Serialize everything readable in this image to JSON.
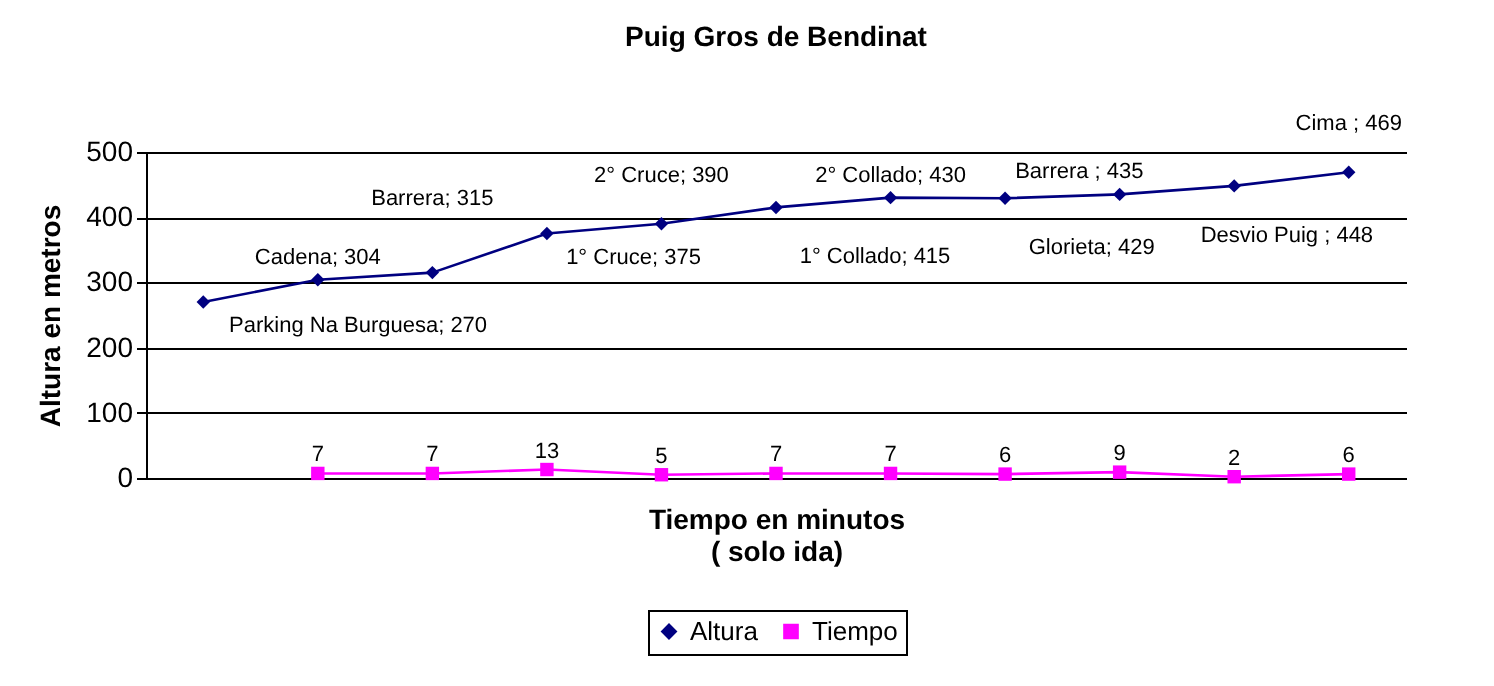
{
  "chart_data": {
    "type": "line",
    "title": "Puig Gros de Bendinat",
    "xlabel": "Tiempo en minutos\n( solo ida)",
    "ylabel": "Altura en metros",
    "categories": [
      null,
      null,
      null,
      null,
      null,
      null,
      null,
      null,
      null,
      null,
      null
    ],
    "series": [
      {
        "name": "Altura",
        "color": "#000080",
        "marker": "diamond",
        "values": [
          270,
          304,
          315,
          375,
          390,
          415,
          430,
          429,
          435,
          448,
          469
        ],
        "value_labels": [
          "Parking Na Burguesa; 270",
          "Cadena; 304",
          "Barrera; 315",
          "1° Cruce; 375",
          "2° Cruce; 390",
          "1° Collado; 415",
          "2° Collado; 430",
          "Glorieta; 429",
          "Barrera ; 435",
          "Desvio Puig ; 448",
          "Cima ; 469"
        ]
      },
      {
        "name": "Tiempo",
        "color": "#ff00ff",
        "marker": "square",
        "values": [
          null,
          7,
          7,
          13,
          5,
          7,
          7,
          6,
          9,
          2,
          6
        ],
        "value_labels": [
          null,
          "7",
          "7",
          "13",
          "5",
          "7",
          "7",
          "6",
          "9",
          "2",
          "6"
        ]
      }
    ],
    "ylim": [
      0,
      500
    ],
    "yticks": [
      0,
      100,
      200,
      300,
      400,
      500
    ],
    "grid": "y",
    "legend": "bottom",
    "tick_labels": "y"
  }
}
